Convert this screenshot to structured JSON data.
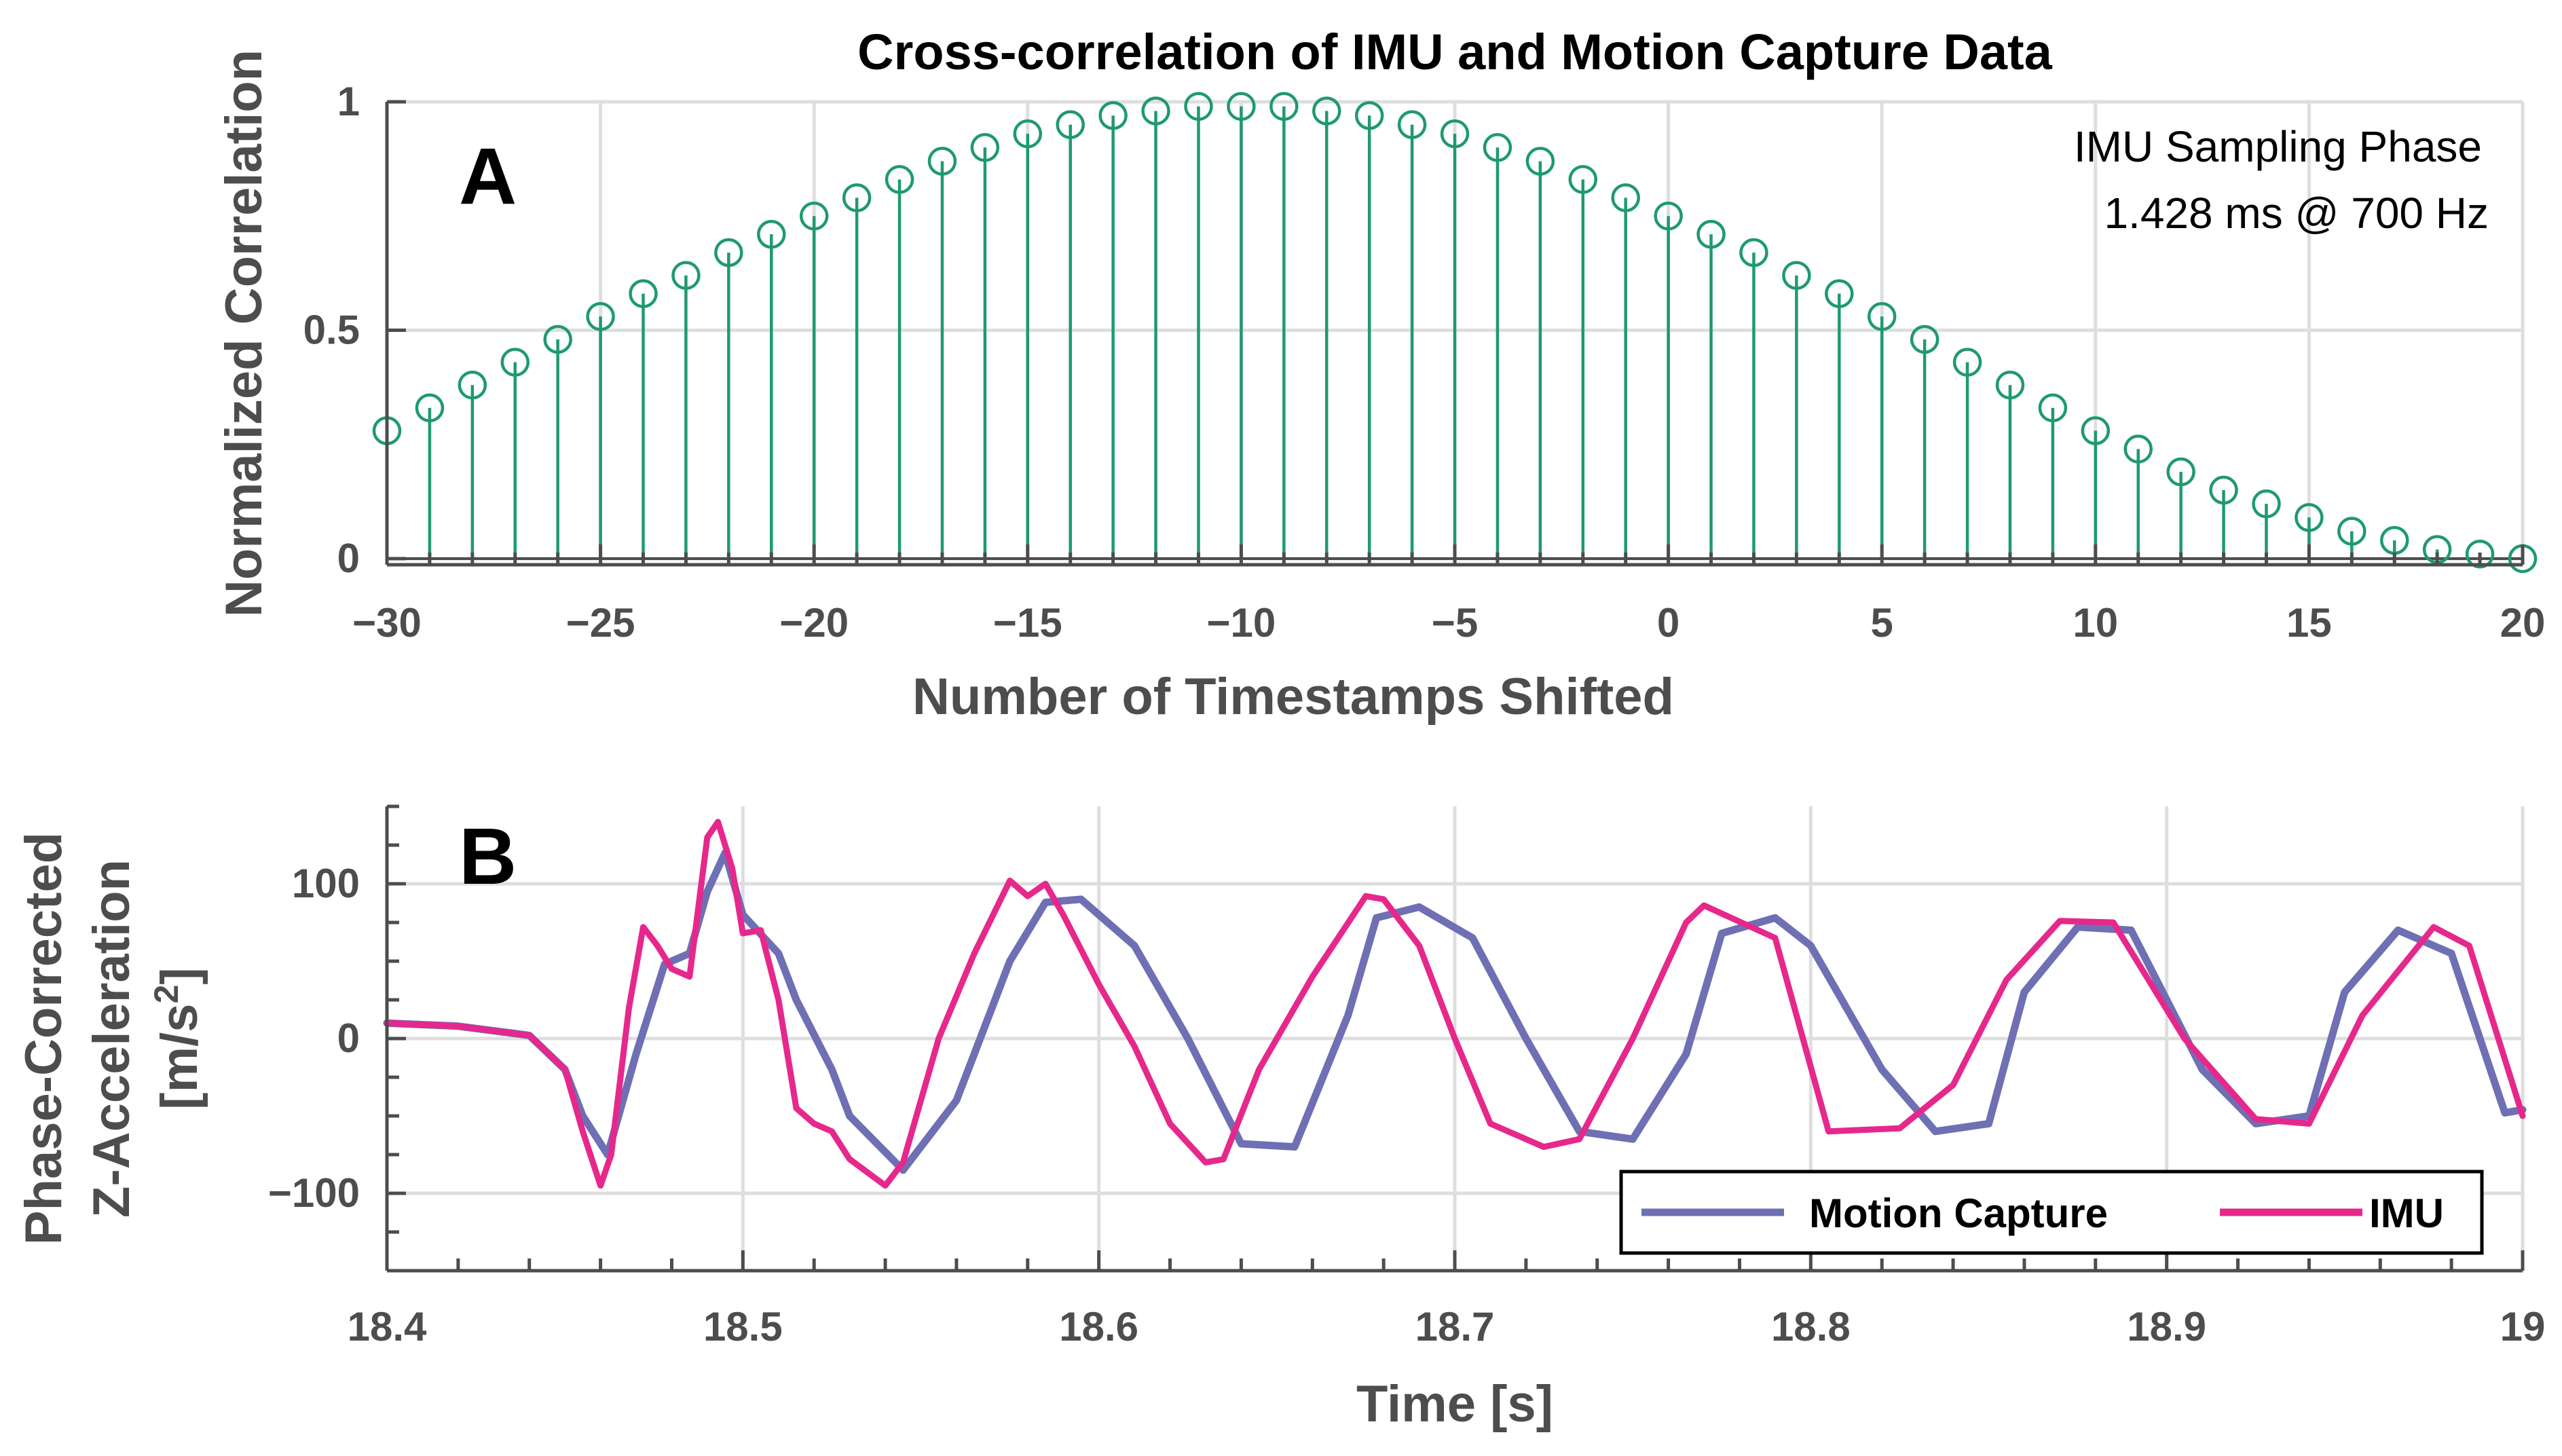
{
  "chart_data": [
    {
      "type": "stem",
      "panel_label": "A",
      "title": "Cross-correlation of IMU and Motion Capture Data",
      "xlabel": "Number of Timestamps Shifted",
      "ylabel": "Normalized Correlation",
      "xlim": [
        -30,
        20
      ],
      "ylim": [
        0,
        1
      ],
      "xticks": [
        -30,
        -25,
        -20,
        -15,
        -10,
        -5,
        0,
        5,
        10,
        15,
        20
      ],
      "xtick_labels": [
        "−30",
        "−25",
        "−20",
        "−15",
        "−10",
        "−5",
        "0",
        "5",
        "10",
        "15",
        "20"
      ],
      "yticks": [
        0,
        0.5,
        1
      ],
      "ytick_labels": [
        "0",
        "0.5",
        "1"
      ],
      "grid": true,
      "annotation": [
        "IMU Sampling Phase",
        "1.428 ms @ 700 Hz"
      ],
      "color": "#1f9a6e",
      "x": [
        -30,
        -29,
        -28,
        -27,
        -26,
        -25,
        -24,
        -23,
        -22,
        -21,
        -20,
        -19,
        -18,
        -17,
        -16,
        -15,
        -14,
        -13,
        -12,
        -11,
        -10,
        -9,
        -8,
        -7,
        -6,
        -5,
        -4,
        -3,
        -2,
        -1,
        0,
        1,
        2,
        3,
        4,
        5,
        6,
        7,
        8,
        9,
        10,
        11,
        12,
        13,
        14,
        15,
        16,
        17,
        18,
        19,
        20
      ],
      "y": [
        0.28,
        0.33,
        0.38,
        0.43,
        0.48,
        0.53,
        0.58,
        0.62,
        0.67,
        0.71,
        0.75,
        0.79,
        0.83,
        0.87,
        0.9,
        0.93,
        0.95,
        0.97,
        0.98,
        0.99,
        0.99,
        0.99,
        0.98,
        0.97,
        0.95,
        0.93,
        0.9,
        0.87,
        0.83,
        0.79,
        0.75,
        0.71,
        0.67,
        0.62,
        0.58,
        0.53,
        0.48,
        0.43,
        0.38,
        0.33,
        0.28,
        0.24,
        0.19,
        0.15,
        0.12,
        0.09,
        0.06,
        0.04,
        0.02,
        0.01,
        0.0
      ]
    },
    {
      "type": "line",
      "panel_label": "B",
      "xlabel": "Time [s]",
      "ylabel_line1": "Phase-Corrected",
      "ylabel_line2": "Z-Acceleration",
      "ylabel_line3": "[m/s",
      "ylabel_sup": "2",
      "ylabel_close": "]",
      "xlim": [
        18.4,
        19.0
      ],
      "ylim": [
        -150,
        150
      ],
      "xticks": [
        18.4,
        18.5,
        18.6,
        18.7,
        18.8,
        18.9,
        19.0
      ],
      "xtick_labels": [
        "18.4",
        "18.5",
        "18.6",
        "18.7",
        "18.8",
        "18.9",
        "19"
      ],
      "yticks": [
        -100,
        0,
        100
      ],
      "ytick_labels": [
        "−100",
        "0",
        "100"
      ],
      "grid": true,
      "legend_position": "bottom-right",
      "series": [
        {
          "name": "Motion Capture",
          "color": "#6f6fb4",
          "x": [
            18.4,
            18.42,
            18.44,
            18.45,
            18.455,
            18.462,
            18.47,
            18.478,
            18.485,
            18.49,
            18.495,
            18.5,
            18.51,
            18.515,
            18.525,
            18.53,
            18.545,
            18.56,
            18.575,
            18.585,
            18.595,
            18.61,
            18.625,
            18.64,
            18.655,
            18.67,
            18.678,
            18.69,
            18.705,
            18.72,
            18.735,
            18.75,
            18.765,
            18.775,
            18.79,
            18.8,
            18.82,
            18.835,
            18.85,
            18.86,
            18.875,
            18.89,
            18.91,
            18.925,
            18.94,
            18.95,
            18.965,
            18.98,
            18.995,
            19.0
          ],
          "y": [
            10,
            8,
            2,
            -20,
            -50,
            -75,
            -10,
            48,
            55,
            95,
            120,
            80,
            55,
            25,
            -20,
            -50,
            -85,
            -40,
            50,
            88,
            90,
            60,
            0,
            -68,
            -70,
            15,
            78,
            85,
            65,
            0,
            -60,
            -65,
            -10,
            68,
            78,
            60,
            -20,
            -60,
            -55,
            30,
            72,
            70,
            -20,
            -55,
            -50,
            30,
            70,
            55,
            -48,
            -46
          ]
        },
        {
          "name": "IMU",
          "color": "#e6288c",
          "x": [
            18.4,
            18.42,
            18.44,
            18.45,
            18.455,
            18.46,
            18.463,
            18.468,
            18.472,
            18.476,
            18.48,
            18.485,
            18.49,
            18.493,
            18.497,
            18.5,
            18.505,
            18.51,
            18.515,
            18.52,
            18.525,
            18.53,
            18.54,
            18.545,
            18.555,
            18.565,
            18.575,
            18.58,
            18.585,
            18.59,
            18.6,
            18.61,
            18.62,
            18.63,
            18.635,
            18.645,
            18.66,
            18.675,
            18.68,
            18.69,
            18.7,
            18.71,
            18.725,
            18.735,
            18.75,
            18.765,
            18.77,
            18.79,
            18.805,
            18.825,
            18.84,
            18.855,
            18.87,
            18.885,
            18.905,
            18.925,
            18.94,
            18.955,
            18.975,
            18.985,
            19.0
          ],
          "y": [
            10,
            8,
            2,
            -20,
            -60,
            -95,
            -75,
            20,
            72,
            60,
            45,
            40,
            130,
            140,
            110,
            68,
            70,
            25,
            -45,
            -55,
            -60,
            -78,
            -95,
            -80,
            0,
            55,
            102,
            92,
            100,
            80,
            35,
            -5,
            -55,
            -80,
            -78,
            -20,
            40,
            92,
            90,
            60,
            0,
            -55,
            -70,
            -65,
            0,
            75,
            86,
            65,
            -60,
            -58,
            -30,
            38,
            76,
            75,
            0,
            -52,
            -55,
            15,
            72,
            60,
            -50
          ]
        }
      ]
    }
  ]
}
